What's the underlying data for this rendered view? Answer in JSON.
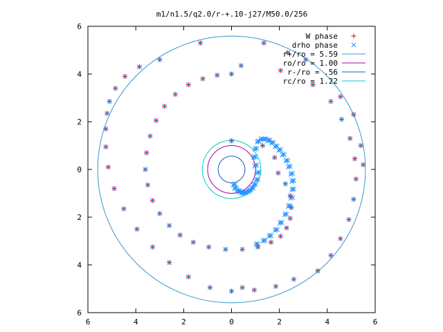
{
  "chart_data": {
    "type": "scatter",
    "title": "m1/n1.5/q2.0/r-+.10-j27/M50.0/256",
    "xlabel": "",
    "ylabel": "",
    "xlim": [
      -6,
      6
    ],
    "ylim": [
      -6,
      6
    ],
    "x_ticks": [
      {
        "value": -6,
        "label": "6"
      },
      {
        "value": -4,
        "label": "4"
      },
      {
        "value": -2,
        "label": "2"
      },
      {
        "value": 0,
        "label": "0"
      },
      {
        "value": 2,
        "label": "2"
      },
      {
        "value": 4,
        "label": "4"
      },
      {
        "value": 6,
        "label": "6"
      }
    ],
    "y_ticks": [
      {
        "value": -6,
        "label": "6"
      },
      {
        "value": -4,
        "label": "4"
      },
      {
        "value": -2,
        "label": "2"
      },
      {
        "value": 0,
        "label": "0"
      },
      {
        "value": 2,
        "label": "2"
      },
      {
        "value": 4,
        "label": "4"
      },
      {
        "value": 6,
        "label": "6"
      }
    ],
    "grid": false,
    "legend_position": "top-right",
    "spiral_series": [
      {
        "name": "W phase",
        "marker": "plus",
        "color": "#e8000b",
        "x": [
          0.0,
          1.3,
          1.8,
          1.95,
          2.25,
          2.45,
          2.5,
          2.45,
          2.3,
          2.05,
          1.65,
          1.1,
          0.45,
          -0.25,
          -0.95,
          -1.6,
          -2.15,
          -2.6,
          -3.0,
          -3.3,
          -3.5,
          -3.6,
          -3.55,
          -3.4,
          -3.15,
          -2.8,
          -2.35,
          -1.8,
          -1.2,
          -0.6,
          0.0,
          0.4,
          2.05,
          3.4,
          4.15,
          4.6,
          4.95,
          5.15,
          5.2,
          5.1,
          4.9,
          4.55,
          4.15,
          3.6,
          2.6,
          1.85,
          0.95,
          0.0,
          -0.9,
          -1.8,
          -2.6,
          -3.3,
          -3.95,
          -4.5,
          -4.9,
          -5.15,
          -5.25,
          -5.25,
          -5.2,
          -5.1,
          -4.85,
          -4.45,
          -3.85,
          -3.0,
          -1.3,
          5.5,
          5.4,
          5.1,
          4.55,
          3.1,
          2.35,
          1.35,
          0.45
        ],
        "y": [
          1.2,
          1.0,
          0.5,
          -0.15,
          -0.6,
          -1.1,
          -1.6,
          -2.05,
          -2.45,
          -2.8,
          -3.05,
          -3.25,
          -3.35,
          -3.35,
          -3.25,
          -3.05,
          -2.75,
          -2.35,
          -1.85,
          -1.3,
          -0.65,
          0.0,
          0.7,
          1.4,
          2.05,
          2.65,
          3.15,
          3.55,
          3.8,
          3.95,
          4.0,
          4.35,
          4.15,
          3.55,
          2.85,
          2.1,
          1.3,
          0.45,
          -0.4,
          -1.25,
          -2.1,
          -2.9,
          -3.6,
          -4.25,
          -4.6,
          -4.9,
          -5.05,
          -5.1,
          -4.95,
          -4.5,
          -3.9,
          -3.25,
          -2.5,
          -1.65,
          -0.8,
          0.1,
          0.95,
          1.7,
          2.35,
          2.85,
          3.4,
          3.9,
          4.3,
          4.6,
          5.3,
          0.2,
          1.0,
          2.3,
          3.05,
          4.6,
          4.9,
          5.3,
          -4.95
        ]
      },
      {
        "name": "drho phase",
        "marker": "cross",
        "color": "#1e90ff",
        "x": [
          0.0,
          1.3,
          1.8,
          1.95,
          2.25,
          2.45,
          2.5,
          2.45,
          2.3,
          2.05,
          1.65,
          1.1,
          0.45,
          -0.25,
          -0.95,
          -1.6,
          -2.15,
          -2.6,
          -3.0,
          -3.3,
          -3.5,
          -3.6,
          -3.55,
          -3.4,
          -3.15,
          -2.8,
          -2.35,
          -1.8,
          -1.2,
          -0.6,
          0.0,
          0.4,
          2.05,
          3.4,
          4.15,
          4.6,
          4.95,
          5.15,
          5.2,
          5.1,
          4.9,
          4.55,
          4.15,
          3.6,
          2.6,
          1.85,
          0.95,
          0.0,
          -0.9,
          -1.8,
          -2.6,
          -3.3,
          -3.95,
          -4.5,
          -4.9,
          -5.15,
          -5.25,
          -5.25,
          -5.2,
          -5.1,
          -4.85,
          -4.45,
          -3.85,
          -3.0,
          -1.3,
          5.5,
          5.4,
          5.1,
          4.55,
          3.1,
          2.35,
          1.35,
          0.45
        ],
        "y": [
          1.2,
          1.0,
          0.5,
          -0.15,
          -0.6,
          -1.1,
          -1.6,
          -2.05,
          -2.45,
          -2.8,
          -3.05,
          -3.25,
          -3.35,
          -3.35,
          -3.25,
          -3.05,
          -2.75,
          -2.35,
          -1.85,
          -1.3,
          -0.65,
          0.0,
          0.7,
          1.4,
          2.05,
          2.65,
          3.15,
          3.55,
          3.8,
          3.95,
          4.0,
          4.35,
          4.15,
          3.55,
          2.85,
          2.1,
          1.3,
          0.45,
          -0.4,
          -1.25,
          -2.1,
          -2.9,
          -3.6,
          -4.25,
          -4.6,
          -4.9,
          -5.05,
          -5.1,
          -4.95,
          -4.5,
          -3.9,
          -3.25,
          -2.5,
          -1.65,
          -0.8,
          0.1,
          0.95,
          1.7,
          2.35,
          2.85,
          3.4,
          3.9,
          4.3,
          4.6,
          5.3,
          0.2,
          1.0,
          2.3,
          3.05,
          4.6,
          4.9,
          5.3,
          -4.95
        ]
      }
    ],
    "cluster_series": {
      "name": "drho phase",
      "color": "#1e90ff",
      "x": [
        0.1,
        0.15,
        0.25,
        0.35,
        0.45,
        0.55,
        0.65,
        0.75,
        0.85,
        0.95,
        1.05,
        1.1,
        1.0,
        0.95,
        1.0,
        1.1,
        1.25,
        1.4,
        1.55,
        1.7,
        1.85,
        2.0,
        2.15,
        2.3,
        2.4,
        2.5,
        2.55,
        2.55,
        2.5,
        2.4,
        2.25,
        2.05,
        1.85,
        1.6,
        1.35,
        1.05
      ],
      "y": [
        -0.6,
        -0.75,
        -0.85,
        -0.9,
        -0.95,
        -0.95,
        -0.9,
        -0.85,
        -0.75,
        -0.6,
        -0.4,
        -0.1,
        0.2,
        0.55,
        0.9,
        1.2,
        1.3,
        1.3,
        1.25,
        1.15,
        1.0,
        0.85,
        0.65,
        0.4,
        0.15,
        -0.15,
        -0.45,
        -0.8,
        -1.15,
        -1.5,
        -1.85,
        -2.2,
        -2.5,
        -2.75,
        -2.95,
        -3.1
      ]
    },
    "circle_series": [
      {
        "name": "r+/ro = 5.59",
        "radius": 5.59,
        "color": "#3399cc"
      },
      {
        "name": "ro/ro = 1.00",
        "radius": 1.0,
        "color": "#aa00aa"
      },
      {
        "name": "r-/ro = .56",
        "radius": 0.56,
        "color": "#1560bd"
      },
      {
        "name": "rc/ro = 1.22",
        "radius": 1.22,
        "color": "#00cccc"
      }
    ]
  }
}
